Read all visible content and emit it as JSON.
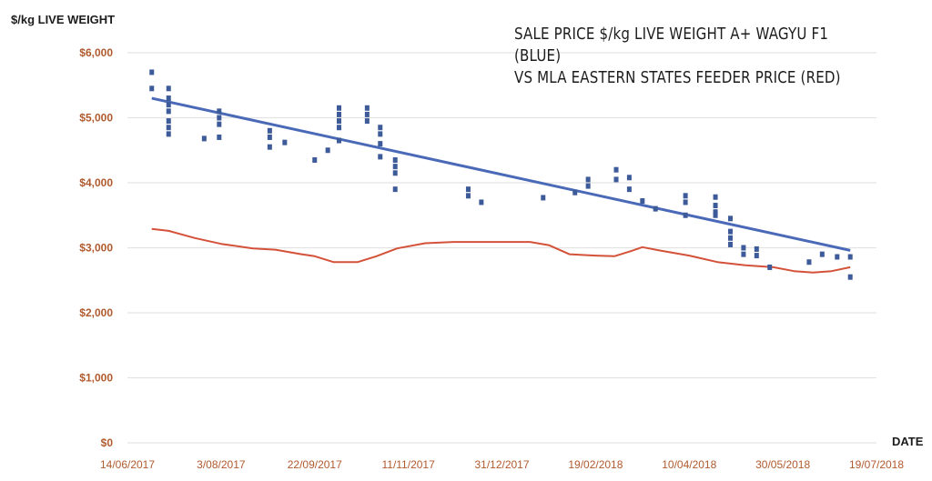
{
  "chart_data": {
    "type": "scatter",
    "title_lines": [
      "SALE PRICE $/kg LIVE WEIGHT A+ WAGYU F1 (BLUE)",
      "VS MLA EASTERN STATES FEEDER PRICE (RED)"
    ],
    "ylabel": "$/kg LIVE WEIGHT",
    "xlabel": "DATE",
    "ylim": [
      0,
      6000
    ],
    "y_ticks": [
      {
        "value": 0,
        "label": "$0"
      },
      {
        "value": 1000,
        "label": "$1,000"
      },
      {
        "value": 2000,
        "label": "$2,000"
      },
      {
        "value": 3000,
        "label": "$3,000"
      },
      {
        "value": 4000,
        "label": "$4,000"
      },
      {
        "value": 5000,
        "label": "$5,000"
      },
      {
        "value": 6000,
        "label": "$6,000"
      }
    ],
    "x_ticks": [
      {
        "date": "2017-06-14",
        "label": "14/06/2017"
      },
      {
        "date": "2017-08-03",
        "label": "3/08/2017"
      },
      {
        "date": "2017-09-22",
        "label": "22/09/2017"
      },
      {
        "date": "2017-11-11",
        "label": "11/11/2017"
      },
      {
        "date": "2017-12-31",
        "label": "31/12/2017"
      },
      {
        "date": "2018-02-19",
        "label": "19/02/2018"
      },
      {
        "date": "2018-04-10",
        "label": "10/04/2018"
      },
      {
        "date": "2018-05-30",
        "label": "30/05/2018"
      },
      {
        "date": "2018-07-19",
        "label": "19/07/2018"
      }
    ],
    "grid": true,
    "colors": {
      "scatter": "#3d5a99",
      "trend": "#4a6ab8",
      "feeder": "#d4513a",
      "grid": "#e3e3e3"
    },
    "series": [
      {
        "kind": "scatter",
        "points": [
          {
            "date": "2017-06-27",
            "y": 5700
          },
          {
            "date": "2017-06-27",
            "y": 5450
          },
          {
            "date": "2017-07-06",
            "y": 5450
          },
          {
            "date": "2017-07-06",
            "y": 5300
          },
          {
            "date": "2017-07-06",
            "y": 5200
          },
          {
            "date": "2017-07-06",
            "y": 5100
          },
          {
            "date": "2017-07-06",
            "y": 4950
          },
          {
            "date": "2017-07-06",
            "y": 4850
          },
          {
            "date": "2017-07-06",
            "y": 4750
          },
          {
            "date": "2017-07-25",
            "y": 4680
          },
          {
            "date": "2017-08-02",
            "y": 5100
          },
          {
            "date": "2017-08-02",
            "y": 5000
          },
          {
            "date": "2017-08-02",
            "y": 4900
          },
          {
            "date": "2017-08-02",
            "y": 4700
          },
          {
            "date": "2017-08-29",
            "y": 4800
          },
          {
            "date": "2017-08-29",
            "y": 4700
          },
          {
            "date": "2017-08-29",
            "y": 4550
          },
          {
            "date": "2017-09-06",
            "y": 4620
          },
          {
            "date": "2017-09-22",
            "y": 4350
          },
          {
            "date": "2017-09-29",
            "y": 4500
          },
          {
            "date": "2017-10-05",
            "y": 5150
          },
          {
            "date": "2017-10-05",
            "y": 5050
          },
          {
            "date": "2017-10-05",
            "y": 4950
          },
          {
            "date": "2017-10-05",
            "y": 4850
          },
          {
            "date": "2017-10-05",
            "y": 4650
          },
          {
            "date": "2017-10-20",
            "y": 5150
          },
          {
            "date": "2017-10-20",
            "y": 5050
          },
          {
            "date": "2017-10-20",
            "y": 4950
          },
          {
            "date": "2017-10-27",
            "y": 4850
          },
          {
            "date": "2017-10-27",
            "y": 4750
          },
          {
            "date": "2017-10-27",
            "y": 4600
          },
          {
            "date": "2017-10-27",
            "y": 4400
          },
          {
            "date": "2017-11-04",
            "y": 4350
          },
          {
            "date": "2017-11-04",
            "y": 4250
          },
          {
            "date": "2017-11-04",
            "y": 4150
          },
          {
            "date": "2017-11-04",
            "y": 3900
          },
          {
            "date": "2017-12-13",
            "y": 3900
          },
          {
            "date": "2017-12-13",
            "y": 3800
          },
          {
            "date": "2017-12-20",
            "y": 3700
          },
          {
            "date": "2018-01-22",
            "y": 3770
          },
          {
            "date": "2018-02-08",
            "y": 3850
          },
          {
            "date": "2018-02-15",
            "y": 4050
          },
          {
            "date": "2018-02-15",
            "y": 3950
          },
          {
            "date": "2018-03-02",
            "y": 4200
          },
          {
            "date": "2018-03-02",
            "y": 4050
          },
          {
            "date": "2018-03-09",
            "y": 4080
          },
          {
            "date": "2018-03-09",
            "y": 3900
          },
          {
            "date": "2018-03-16",
            "y": 3720
          },
          {
            "date": "2018-03-23",
            "y": 3600
          },
          {
            "date": "2018-04-08",
            "y": 3800
          },
          {
            "date": "2018-04-08",
            "y": 3700
          },
          {
            "date": "2018-04-08",
            "y": 3500
          },
          {
            "date": "2018-04-24",
            "y": 3780
          },
          {
            "date": "2018-04-24",
            "y": 3650
          },
          {
            "date": "2018-04-24",
            "y": 3550
          },
          {
            "date": "2018-04-24",
            "y": 3500
          },
          {
            "date": "2018-05-02",
            "y": 3450
          },
          {
            "date": "2018-05-02",
            "y": 3250
          },
          {
            "date": "2018-05-02",
            "y": 3150
          },
          {
            "date": "2018-05-02",
            "y": 3050
          },
          {
            "date": "2018-05-09",
            "y": 3000
          },
          {
            "date": "2018-05-09",
            "y": 2900
          },
          {
            "date": "2018-05-16",
            "y": 2980
          },
          {
            "date": "2018-05-16",
            "y": 2880
          },
          {
            "date": "2018-05-23",
            "y": 2700
          },
          {
            "date": "2018-06-13",
            "y": 2780
          },
          {
            "date": "2018-06-20",
            "y": 2900
          },
          {
            "date": "2018-06-28",
            "y": 2860
          },
          {
            "date": "2018-07-05",
            "y": 2860
          },
          {
            "date": "2018-07-05",
            "y": 2550
          }
        ]
      },
      {
        "kind": "trendline",
        "points": [
          {
            "date": "2017-06-27",
            "y": 5300
          },
          {
            "date": "2018-07-05",
            "y": 2960
          }
        ]
      },
      {
        "kind": "line",
        "points": [
          {
            "date": "2017-06-27",
            "y": 3290
          },
          {
            "date": "2017-07-06",
            "y": 3260
          },
          {
            "date": "2017-07-20",
            "y": 3150
          },
          {
            "date": "2017-08-03",
            "y": 3060
          },
          {
            "date": "2017-08-20",
            "y": 2990
          },
          {
            "date": "2017-09-01",
            "y": 2970
          },
          {
            "date": "2017-09-15",
            "y": 2900
          },
          {
            "date": "2017-09-22",
            "y": 2870
          },
          {
            "date": "2017-10-02",
            "y": 2780
          },
          {
            "date": "2017-10-15",
            "y": 2780
          },
          {
            "date": "2017-10-25",
            "y": 2870
          },
          {
            "date": "2017-11-05",
            "y": 2990
          },
          {
            "date": "2017-11-20",
            "y": 3070
          },
          {
            "date": "2017-12-05",
            "y": 3090
          },
          {
            "date": "2017-12-31",
            "y": 3090
          },
          {
            "date": "2018-01-15",
            "y": 3090
          },
          {
            "date": "2018-01-25",
            "y": 3040
          },
          {
            "date": "2018-02-05",
            "y": 2900
          },
          {
            "date": "2018-02-19",
            "y": 2880
          },
          {
            "date": "2018-03-01",
            "y": 2870
          },
          {
            "date": "2018-03-10",
            "y": 2950
          },
          {
            "date": "2018-03-16",
            "y": 3010
          },
          {
            "date": "2018-03-25",
            "y": 2960
          },
          {
            "date": "2018-04-10",
            "y": 2880
          },
          {
            "date": "2018-04-25",
            "y": 2780
          },
          {
            "date": "2018-05-10",
            "y": 2730
          },
          {
            "date": "2018-05-25",
            "y": 2700
          },
          {
            "date": "2018-06-05",
            "y": 2640
          },
          {
            "date": "2018-06-15",
            "y": 2620
          },
          {
            "date": "2018-06-25",
            "y": 2640
          },
          {
            "date": "2018-07-05",
            "y": 2700
          }
        ]
      }
    ]
  }
}
